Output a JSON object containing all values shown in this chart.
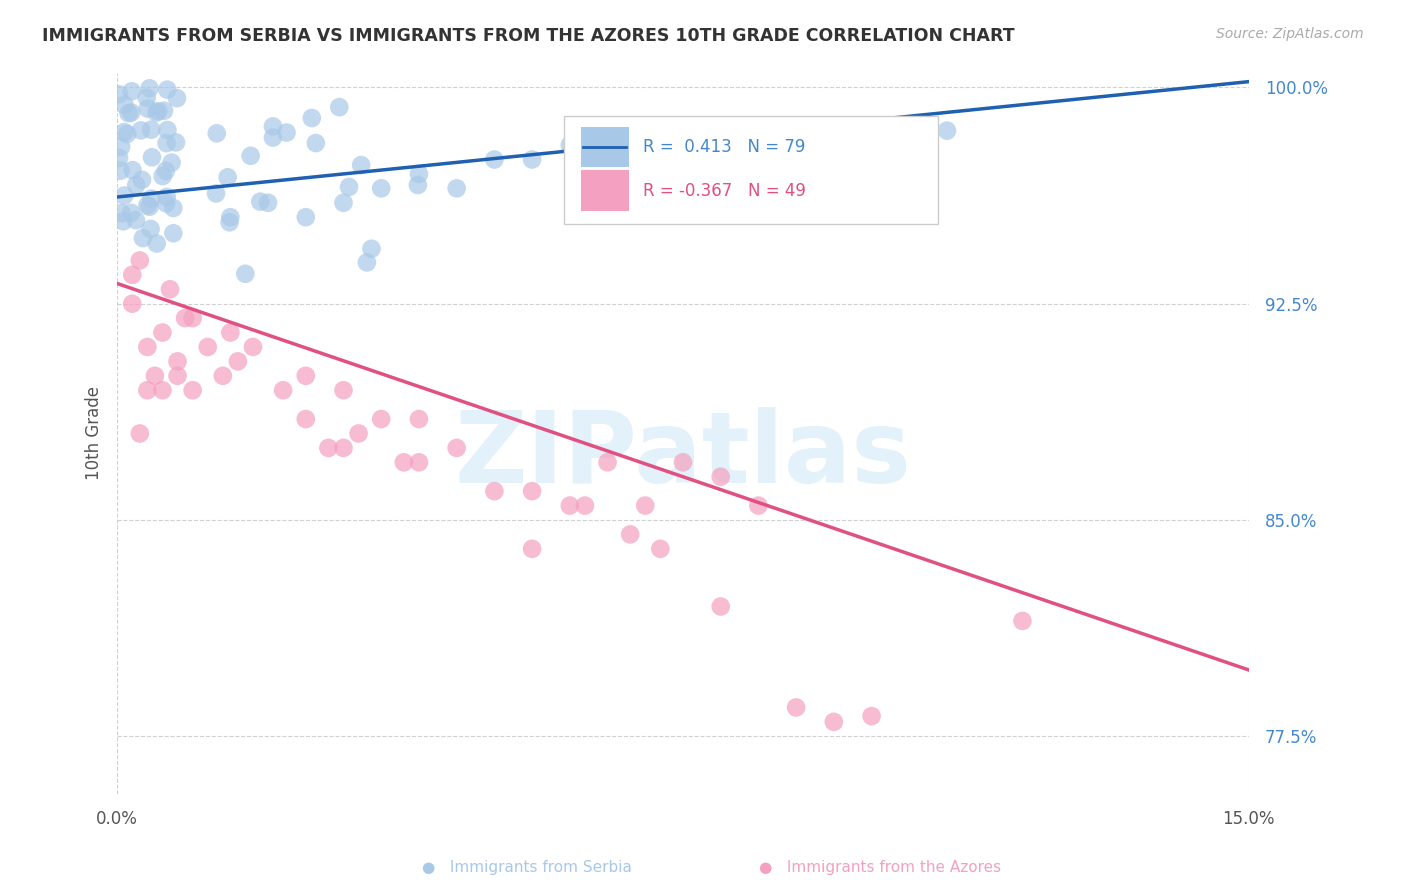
{
  "title": "IMMIGRANTS FROM SERBIA VS IMMIGRANTS FROM THE AZORES 10TH GRADE CORRELATION CHART",
  "source": "Source: ZipAtlas.com",
  "ylabel": "10th Grade",
  "xlim": [
    0.0,
    0.15
  ],
  "ylim": [
    0.755,
    1.005
  ],
  "yticks": [
    1.0,
    0.925,
    0.85,
    0.775
  ],
  "ytick_labels": [
    "100.0%",
    "92.5%",
    "85.0%",
    "77.5%"
  ],
  "xticks": [
    0.0,
    0.15
  ],
  "xtick_labels": [
    "0.0%",
    "15.0%"
  ],
  "serbia_color": "#a8c8e8",
  "azores_color": "#f4a0c0",
  "serbia_line_color": "#2060b0",
  "azores_line_color": "#e05080",
  "yaxis_color": "#4488cc",
  "serbia_label": "Immigrants from Serbia",
  "azores_label": "Immigrants from the Azores",
  "legend_r1": "R =  0.413   N = 79",
  "legend_r2": "R = -0.367   N = 49",
  "serbia_line_x0": 0.0,
  "serbia_line_y0": 0.962,
  "serbia_line_x1": 0.15,
  "serbia_line_y1": 1.002,
  "azores_line_x0": 0.0,
  "azores_line_y0": 0.932,
  "azores_line_x1": 0.15,
  "azores_line_y1": 0.798,
  "watermark_color": "#d0e8f8"
}
